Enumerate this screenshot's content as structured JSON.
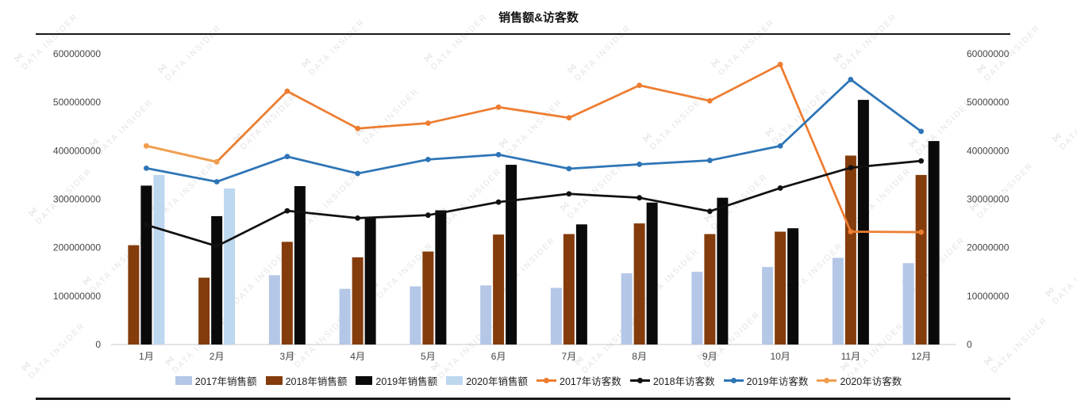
{
  "title": "销售额&访客数",
  "watermark": {
    "logo": "⋈",
    "text": "DATA INSIDER",
    "subtext": "· · · · ·"
  },
  "chart_data": {
    "type": "combo-bar-line",
    "title": "销售额&访客数",
    "legend_position": "bottom",
    "grid": "off",
    "categories": [
      "1月",
      "2月",
      "3月",
      "4月",
      "5月",
      "6月",
      "7月",
      "8月",
      "9月",
      "10月",
      "11月",
      "12月"
    ],
    "left_axis": {
      "min": 0,
      "max": 600000000,
      "ticks": [
        "0",
        "100000000",
        "200000000",
        "300000000",
        "400000000",
        "500000000",
        "600000000"
      ]
    },
    "right_axis": {
      "min": 0,
      "max": 60000000,
      "ticks": [
        "0",
        "10000000",
        "20000000",
        "30000000",
        "40000000",
        "50000000",
        "60000000"
      ]
    },
    "bar_series": [
      {
        "name": "2017年销售额",
        "color": "#b4c7e7",
        "axis": "left",
        "values": [
          null,
          null,
          143000000,
          115000000,
          120000000,
          122000000,
          117000000,
          147000000,
          150000000,
          160000000,
          179000000,
          168000000
        ]
      },
      {
        "name": "2018年销售额",
        "color": "#843c0c",
        "axis": "left",
        "values": [
          205000000,
          138000000,
          212000000,
          180000000,
          192000000,
          227000000,
          228000000,
          250000000,
          228000000,
          233000000,
          390000000,
          350000000
        ]
      },
      {
        "name": "2019年销售额",
        "color": "#0a0a0a",
        "axis": "left",
        "values": [
          328000000,
          265000000,
          327000000,
          262000000,
          277000000,
          371000000,
          248000000,
          293000000,
          303000000,
          240000000,
          505000000,
          420000000
        ]
      },
      {
        "name": "2020年销售额",
        "color": "#bdd7ee",
        "axis": "left",
        "values": [
          350000000,
          322000000,
          null,
          null,
          null,
          null,
          null,
          null,
          null,
          null,
          null,
          null
        ]
      }
    ],
    "line_series": [
      {
        "name": "2017年访客数",
        "color": "#ed7d31",
        "axis": "right",
        "values": [
          41000000,
          37700000,
          52300000,
          44600000,
          45700000,
          49000000,
          46800000,
          53500000,
          50300000,
          57800000,
          23300000,
          23200000
        ]
      },
      {
        "name": "2018年访客数",
        "color": "#111111",
        "axis": "right",
        "values": [
          24700000,
          20300000,
          27600000,
          26100000,
          26700000,
          29400000,
          31100000,
          30300000,
          27500000,
          32300000,
          36500000,
          37900000
        ]
      },
      {
        "name": "2019年访客数",
        "color": "#2e75b6",
        "axis": "right",
        "values": [
          36400000,
          33600000,
          38800000,
          35300000,
          38200000,
          39200000,
          36300000,
          37200000,
          38000000,
          41000000,
          54700000,
          44000000
        ]
      },
      {
        "name": "2020年访客数",
        "color": "#f09e4e",
        "axis": "right",
        "values": [
          41000000,
          37700000,
          null,
          null,
          null,
          null,
          null,
          null,
          null,
          null,
          null,
          null
        ]
      }
    ]
  }
}
